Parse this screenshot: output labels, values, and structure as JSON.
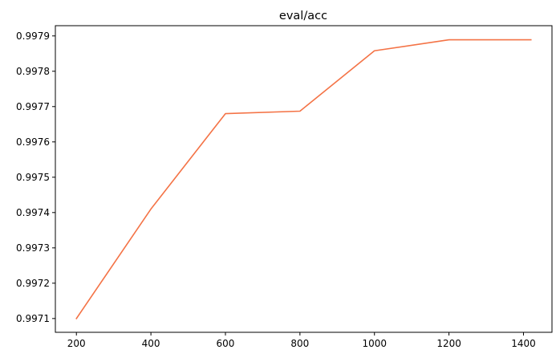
{
  "chart_data": {
    "type": "line",
    "title": "eval/acc",
    "xlabel": "",
    "ylabel": "",
    "x": [
      200,
      400,
      600,
      800,
      1000,
      1200,
      1420
    ],
    "series": [
      {
        "values": [
          0.9971,
          0.99741,
          0.99768,
          0.997687,
          0.997858,
          0.997889,
          0.997889
        ],
        "color": "#f47346"
      }
    ],
    "xticks": [
      200,
      400,
      600,
      800,
      1000,
      1200,
      1400
    ],
    "xtick_labels": [
      "200",
      "400",
      "600",
      "800",
      "1000",
      "1200",
      "1400"
    ],
    "yticks": [
      0.9971,
      0.9972,
      0.9973,
      0.9974,
      0.9975,
      0.9976,
      0.9977,
      0.9978,
      0.9979
    ],
    "ytick_labels": [
      "0.9971",
      "0.9972",
      "0.9973",
      "0.9974",
      "0.9975",
      "0.9976",
      "0.9977",
      "0.9978",
      "0.9979"
    ],
    "xlim": [
      143.5,
      1476.5
    ],
    "ylim": [
      0.997061,
      0.997929
    ],
    "grid": false,
    "legend": "none"
  }
}
